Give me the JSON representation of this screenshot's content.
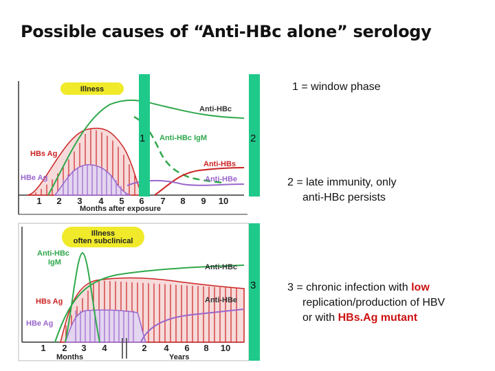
{
  "title": "Possible causes of “Anti-HBc alone” serology",
  "annotations": {
    "a1": "1 = window phase",
    "a2_line1": "2 = late immunity, only",
    "a2_line2": "anti-HBc persists",
    "a3_line1_pre": "3 = chronic infection with ",
    "a3_low": "low",
    "a3_line2": "replication/production of HBV",
    "a3_line3_pre": "or with ",
    "a3_mutant": "HBs.Ag mutant"
  },
  "markers": {
    "m1": "1",
    "m2": "2",
    "m3": "3"
  },
  "chart_top": {
    "badge": "Illness",
    "labels": {
      "anti_hbc": "Anti-HBc",
      "anti_hbc_igm": "Anti-HBc IgM",
      "hbs_ag": "HBs Ag",
      "hbe_ag": "HBe Ag",
      "anti_hbs": "Anti-HBs",
      "anti_hbe": "Anti-HBe"
    },
    "ticks": [
      "1",
      "2",
      "3",
      "4",
      "5",
      "6",
      "7",
      "8",
      "9",
      "10"
    ],
    "xlabel": "Months after exposure"
  },
  "chart_bottom": {
    "badge_line1": "Illness",
    "badge_line2": "often subclinical",
    "labels": {
      "anti_hbc_igm_1": "Anti-HBc",
      "anti_hbc_igm_2": "IgM",
      "anti_hbc": "Anti-HBc",
      "hbs_ag": "HBs Ag",
      "anti_hbe": "Anti-HBe",
      "hbe_ag": "HBe Ag"
    },
    "ticks_months": [
      "1",
      "2",
      "3",
      "4"
    ],
    "ticks_years": [
      "2",
      "4",
      "6",
      "8",
      "10"
    ],
    "xlabel_months": "Months",
    "xlabel_years": "Years"
  },
  "colors": {
    "marker_bar": "#1ec98a",
    "green": "#2ea84a",
    "red": "#cc2222",
    "purple": "#9966cc",
    "badge": "#f0ea2a"
  }
}
